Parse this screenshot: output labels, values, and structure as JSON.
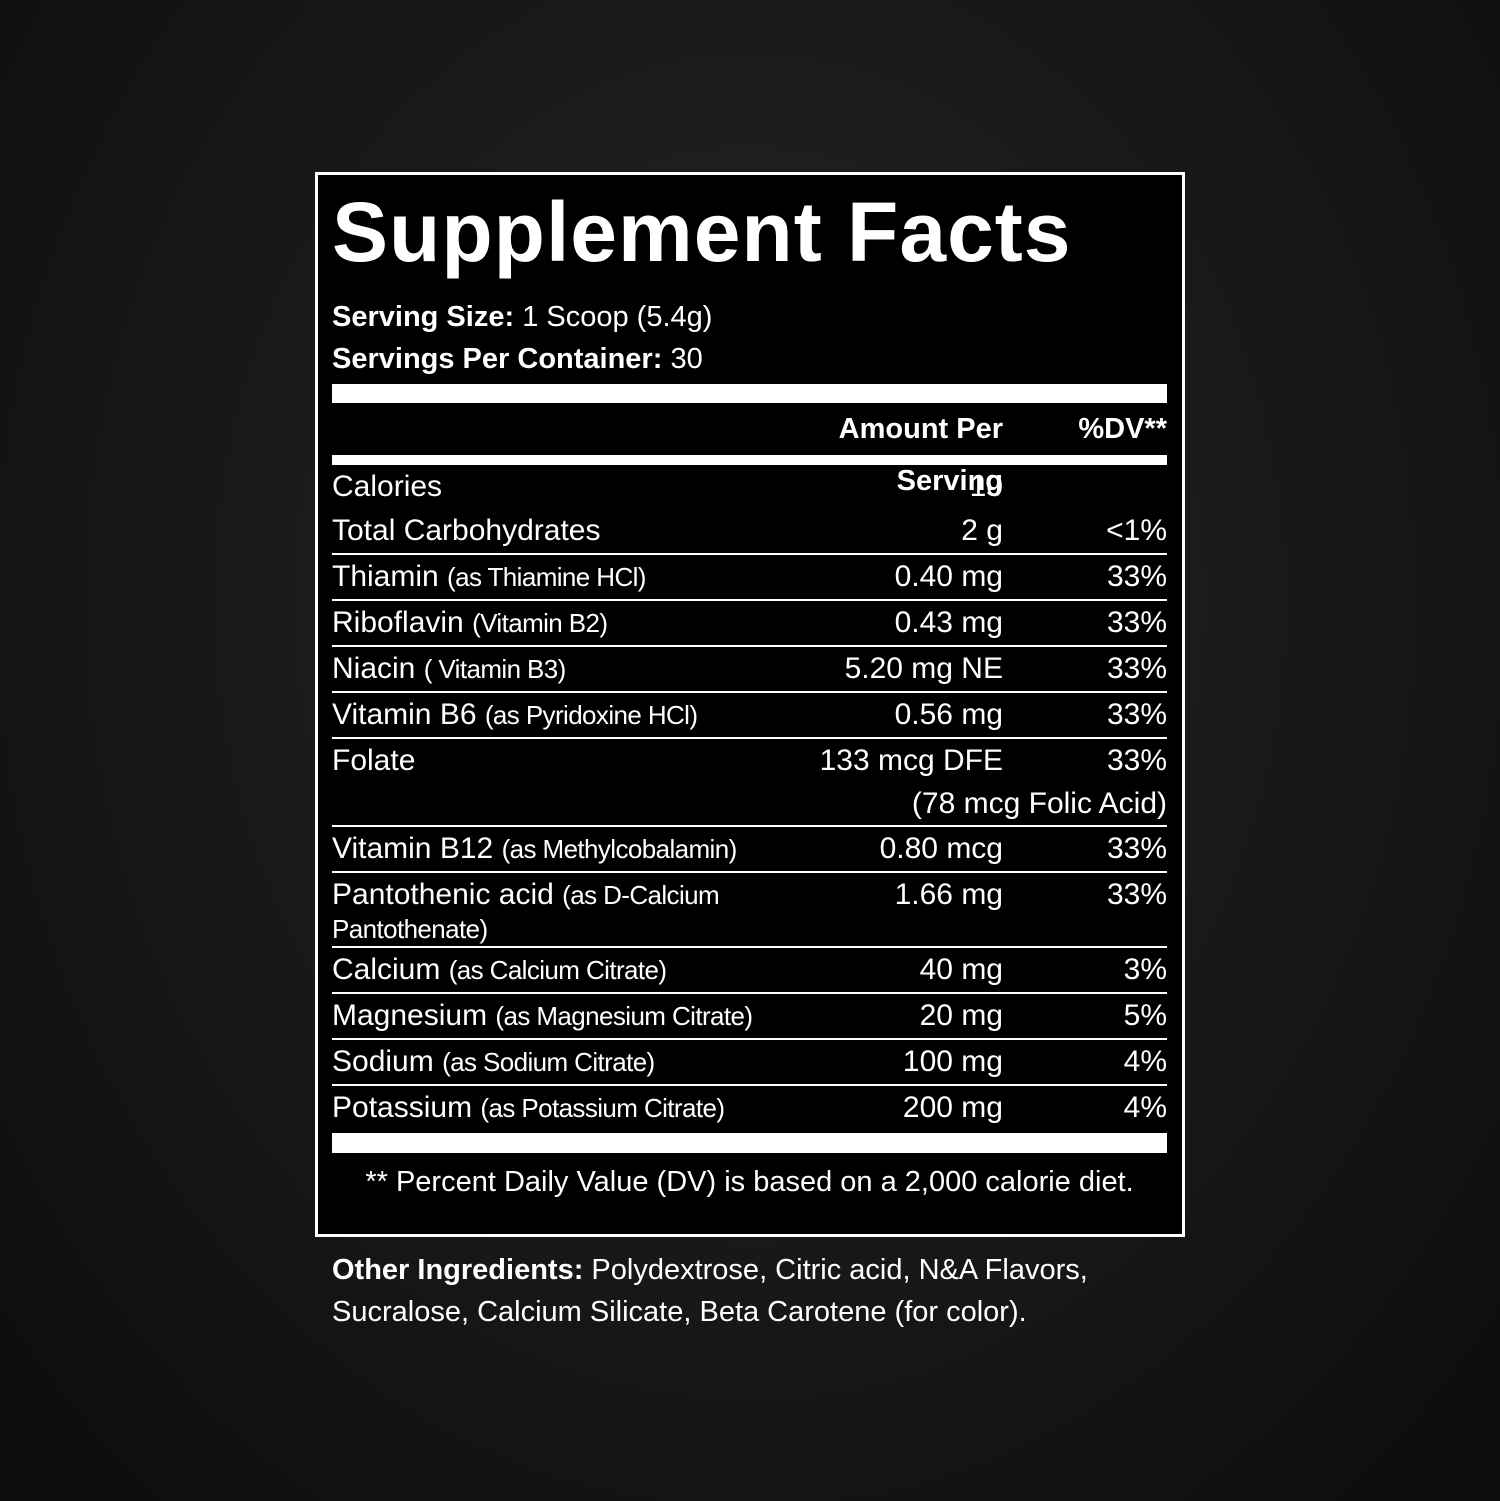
{
  "title": "Supplement Facts",
  "serving": [
    {
      "label": "Serving Size:",
      "value": "1 Scoop (5.4g)"
    },
    {
      "label": "Servings Per Container:",
      "value": "30"
    }
  ],
  "header": {
    "amount": "Amount Per Serving",
    "dv": "%DV**"
  },
  "rows": [
    {
      "name": "Calories",
      "amount": "10"
    },
    {
      "name": "Total Carbohydrates",
      "amount": "2 g",
      "dv": "<1%"
    },
    {
      "name": "Thiamin",
      "note": "(as Thiamine HCl)",
      "amount": "0.40 mg",
      "dv": "33%"
    },
    {
      "name": "Riboflavin",
      "note": "(Vitamin B2)",
      "amount": "0.43 mg",
      "dv": "33%"
    },
    {
      "name": "Niacin",
      "note": "( Vitamin B3)",
      "amount": "5.20 mg NE",
      "dv": "33%"
    },
    {
      "name": "Vitamin B6",
      "note": "(as Pyridoxine HCl)",
      "amount": "0.56 mg",
      "dv": "33%"
    },
    {
      "name": "Folate",
      "amount": "133 mcg DFE",
      "dv": "33%",
      "extra": "(78 mcg Folic Acid)"
    },
    {
      "name": "Vitamin B12",
      "note": "(as Methylcobalamin)",
      "amount": "0.80 mcg",
      "dv": "33%"
    },
    {
      "name": "Pantothenic acid",
      "note": "(as D-Calcium Pantothenate)",
      "amount": "1.66 mg",
      "dv": "33%"
    },
    {
      "name": "Calcium",
      "note": "(as Calcium Citrate)",
      "amount": "40 mg",
      "dv": "3%"
    },
    {
      "name": "Magnesium",
      "note": "(as Magnesium Citrate)",
      "amount": "20 mg",
      "dv": "5%"
    },
    {
      "name": "Sodium",
      "note": "(as Sodium Citrate)",
      "amount": "100 mg",
      "dv": "4%"
    },
    {
      "name": "Potassium",
      "note": "(as Potassium Citrate)",
      "amount": "200 mg",
      "dv": "4%"
    }
  ],
  "footnote": "** Percent Daily Value (DV) is based on a 2,000 calorie diet.",
  "other": {
    "label": "Other Ingredients:",
    "text": "Polydextrose, Citric acid, N&A Flavors, Sucralose, Calcium Silicate, Beta Carotene (for color)."
  }
}
